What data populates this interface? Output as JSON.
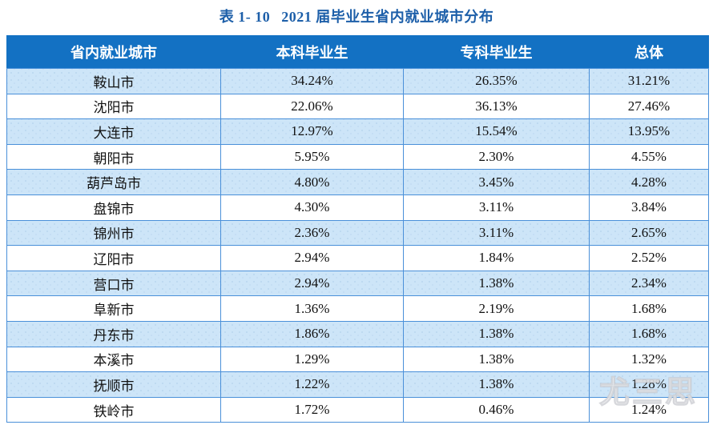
{
  "title": {
    "prefix": "表 1- 10",
    "text": "2021 届毕业生省内就业城市分布"
  },
  "table": {
    "headers": [
      "省内就业城市",
      "本科毕业生",
      "专科毕业生",
      "总体"
    ],
    "rows": [
      {
        "city": "鞍山市",
        "undergrad": "34.24%",
        "college": "26.35%",
        "overall": "31.21%"
      },
      {
        "city": "沈阳市",
        "undergrad": "22.06%",
        "college": "36.13%",
        "overall": "27.46%"
      },
      {
        "city": "大连市",
        "undergrad": "12.97%",
        "college": "15.54%",
        "overall": "13.95%"
      },
      {
        "city": "朝阳市",
        "undergrad": "5.95%",
        "college": "2.30%",
        "overall": "4.55%"
      },
      {
        "city": "葫芦岛市",
        "undergrad": "4.80%",
        "college": "3.45%",
        "overall": "4.28%"
      },
      {
        "city": "盘锦市",
        "undergrad": "4.30%",
        "college": "3.11%",
        "overall": "3.84%"
      },
      {
        "city": "锦州市",
        "undergrad": "2.36%",
        "college": "3.11%",
        "overall": "2.65%"
      },
      {
        "city": "辽阳市",
        "undergrad": "2.94%",
        "college": "1.84%",
        "overall": "2.52%"
      },
      {
        "city": "营口市",
        "undergrad": "2.94%",
        "college": "1.38%",
        "overall": "2.34%"
      },
      {
        "city": "阜新市",
        "undergrad": "1.36%",
        "college": "2.19%",
        "overall": "1.68%"
      },
      {
        "city": "丹东市",
        "undergrad": "1.86%",
        "college": "1.38%",
        "overall": "1.68%"
      },
      {
        "city": "本溪市",
        "undergrad": "1.29%",
        "college": "1.38%",
        "overall": "1.32%"
      },
      {
        "city": "抚顺市",
        "undergrad": "1.22%",
        "college": "1.38%",
        "overall": "1.28%"
      },
      {
        "city": "铁岭市",
        "undergrad": "1.72%",
        "college": "0.46%",
        "overall": "1.24%"
      }
    ]
  },
  "watermark": {
    "text": "尤三思"
  },
  "colors": {
    "title_blue": "#1d5fa9",
    "header_bg": "#1371c3",
    "header_text": "#ffffff",
    "row_alt_bg": "#cde5f8",
    "row_plain_bg": "#ffffff",
    "border_blue": "#4a90d9",
    "cell_text": "#111111"
  }
}
